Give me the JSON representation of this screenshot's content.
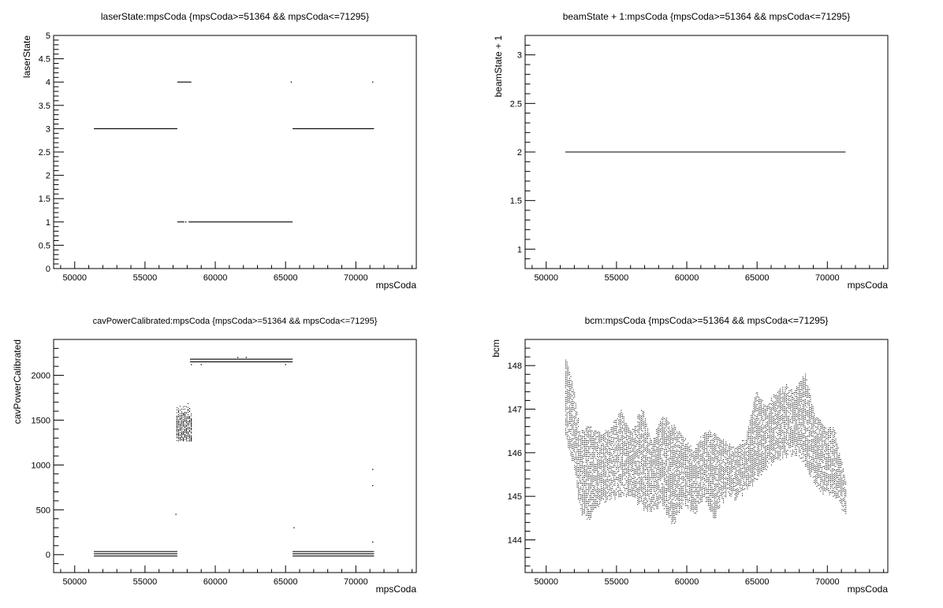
{
  "chart_data": [
    {
      "type": "scatter",
      "title": "laserState:mpsCoda {mpsCoda>=51364 && mpsCoda<=71295}",
      "xlabel": "mpsCoda",
      "ylabel": "laserState",
      "xlim": [
        48500,
        74300
      ],
      "ylim": [
        0,
        5
      ],
      "xticks": [
        50000,
        55000,
        60000,
        65000,
        70000
      ],
      "xticklabels": [
        "50000",
        "55000",
        "60000",
        "65000",
        "70000"
      ],
      "yticks": [
        0,
        0.5,
        1,
        1.5,
        2,
        2.5,
        3,
        3.5,
        4,
        4.5,
        5
      ],
      "yticklabels": [
        "0",
        "0.5",
        "1",
        "1.5",
        "2",
        "2.5",
        "3",
        "3.5",
        "4",
        "4.5",
        "5"
      ],
      "grid": false,
      "legend": "none",
      "segments": [
        {
          "x0": 51364,
          "x1": 57300,
          "y": 3
        },
        {
          "x0": 57300,
          "x1": 58300,
          "y": 4
        },
        {
          "x0": 57300,
          "x1": 57800,
          "y": 1
        },
        {
          "x0": 58100,
          "x1": 65500,
          "y": 1
        },
        {
          "x0": 65500,
          "x1": 71295,
          "y": 3
        }
      ],
      "points": [
        {
          "x": 57900,
          "y": 1
        },
        {
          "x": 65400,
          "y": 4
        },
        {
          "x": 71200,
          "y": 4
        }
      ]
    },
    {
      "type": "scatter",
      "title": "beamState + 1:mpsCoda {mpsCoda>=51364 && mpsCoda<=71295}",
      "xlabel": "mpsCoda",
      "ylabel": "beamState + 1",
      "xlim": [
        48500,
        74300
      ],
      "ylim": [
        0.8,
        3.2
      ],
      "xticks": [
        50000,
        55000,
        60000,
        65000,
        70000
      ],
      "xticklabels": [
        "50000",
        "55000",
        "60000",
        "65000",
        "70000"
      ],
      "yticks": [
        1,
        1.5,
        2,
        2.5,
        3
      ],
      "yticklabels": [
        "1",
        "1.5",
        "2",
        "2.5",
        "3"
      ],
      "grid": false,
      "legend": "none",
      "segments": [
        {
          "x0": 51364,
          "x1": 71295,
          "y": 2
        }
      ],
      "points": []
    },
    {
      "type": "scatter",
      "title": "cavPowerCalibrated:mpsCoda {mpsCoda>=51364 && mpsCoda<=71295}",
      "xlabel": "mpsCoda",
      "ylabel": "cavPowerCalibrated",
      "xlim": [
        48500,
        74300
      ],
      "ylim": [
        -200,
        2400
      ],
      "xticks": [
        50000,
        55000,
        60000,
        65000,
        70000
      ],
      "xticklabels": [
        "50000",
        "55000",
        "60000",
        "65000",
        "70000"
      ],
      "yticks": [
        0,
        500,
        1000,
        1500,
        2000
      ],
      "yticklabels": [
        "0",
        "500",
        "1000",
        "1500",
        "2000"
      ],
      "grid": false,
      "legend": "none",
      "segments": [
        {
          "x0": 51364,
          "x1": 57300,
          "y": 35
        },
        {
          "x0": 51364,
          "x1": 57300,
          "y": 10
        },
        {
          "x0": 51364,
          "x1": 57300,
          "y": -15
        },
        {
          "x0": 58200,
          "x1": 65500,
          "y": 2180
        },
        {
          "x0": 58200,
          "x1": 65500,
          "y": 2150
        },
        {
          "x0": 65500,
          "x1": 71295,
          "y": 35
        },
        {
          "x0": 65500,
          "x1": 71295,
          "y": 10
        },
        {
          "x0": 65500,
          "x1": 71295,
          "y": -15
        }
      ],
      "clusters": [
        {
          "x0": 57250,
          "x1": 58300,
          "y0": 1270,
          "y1": 1700
        }
      ],
      "points": [
        {
          "x": 57200,
          "y": 450
        },
        {
          "x": 58300,
          "y": 2120
        },
        {
          "x": 59000,
          "y": 2120
        },
        {
          "x": 61600,
          "y": 2200
        },
        {
          "x": 62200,
          "y": 2200
        },
        {
          "x": 65000,
          "y": 2120
        },
        {
          "x": 65600,
          "y": 300
        },
        {
          "x": 71200,
          "y": 950
        },
        {
          "x": 71200,
          "y": 770
        },
        {
          "x": 71200,
          "y": 140
        }
      ]
    },
    {
      "type": "scatter",
      "title": "bcm:mpsCoda {mpsCoda>=51364 && mpsCoda<=71295}",
      "xlabel": "mpsCoda",
      "ylabel": "bcm",
      "xlim": [
        48500,
        74300
      ],
      "ylim": [
        143.25,
        148.6
      ],
      "xticks": [
        50000,
        55000,
        60000,
        65000,
        70000
      ],
      "xticklabels": [
        "50000",
        "55000",
        "60000",
        "65000",
        "70000"
      ],
      "yticks": [
        144,
        145,
        146,
        147,
        148
      ],
      "yticklabels": [
        "144",
        "145",
        "146",
        "147",
        "148"
      ],
      "grid": false,
      "legend": "none",
      "profile": {
        "x": [
          51364,
          52000,
          52400,
          53000,
          53800,
          54500,
          55300,
          56000,
          56800,
          57500,
          58200,
          59000,
          59800,
          60500,
          61200,
          62000,
          62800,
          63500,
          64200,
          64900,
          65600,
          66300,
          67000,
          67700,
          68400,
          69100,
          69800,
          70500,
          71295
        ],
        "ymin": [
          146.3,
          145.6,
          144.6,
          144.4,
          144.8,
          144.9,
          145.0,
          145.0,
          144.7,
          144.6,
          144.8,
          144.3,
          144.8,
          144.5,
          144.9,
          144.4,
          145.0,
          144.9,
          145.1,
          145.3,
          145.6,
          145.8,
          145.9,
          145.9,
          145.7,
          145.2,
          145.0,
          145.0,
          144.5
        ],
        "ymax": [
          148.3,
          147.4,
          146.5,
          146.7,
          146.5,
          146.6,
          147.0,
          146.5,
          147.1,
          146.3,
          146.9,
          146.7,
          146.4,
          146.1,
          146.6,
          146.5,
          146.3,
          146.2,
          146.4,
          147.5,
          147.1,
          147.4,
          147.6,
          147.5,
          147.9,
          146.9,
          146.7,
          146.6,
          145.4
        ]
      }
    }
  ]
}
